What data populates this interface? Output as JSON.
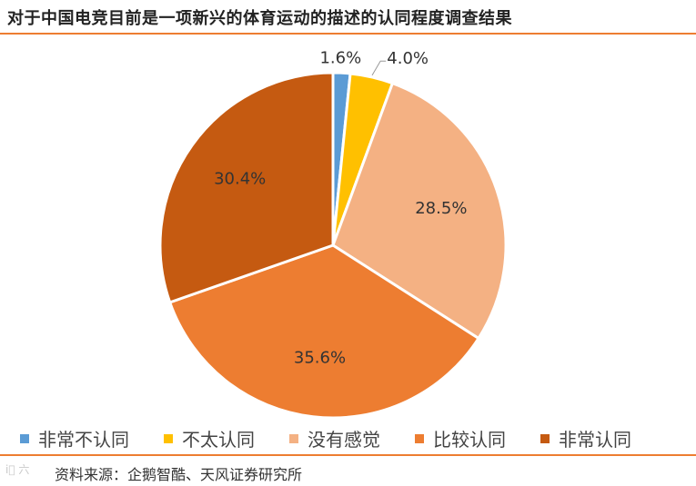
{
  "title": "对于中国电竞目前是一项新兴的体育运动的描述的认同程度调查结果",
  "source": "资料来源：企鹅智酷、天风证券研究所",
  "watermark": "i⃝ 六",
  "chart_data": {
    "type": "pie",
    "title": "对于中国电竞目前是一项新兴的体育运动的描述的认同程度调查结果",
    "categories": [
      "非常不认同",
      "不太认同",
      "没有感觉",
      "比较认同",
      "非常认同"
    ],
    "values": [
      1.6,
      4.0,
      28.5,
      35.6,
      30.4
    ],
    "labels": [
      "1.6%",
      "4.0%",
      "28.5%",
      "35.6%",
      "30.4%"
    ],
    "colors": [
      "#5B9BD5",
      "#FFC000",
      "#F4B183",
      "#ED7D31",
      "#C55A11"
    ],
    "legend_position": "bottom",
    "start_angle": "top, clockwise"
  }
}
